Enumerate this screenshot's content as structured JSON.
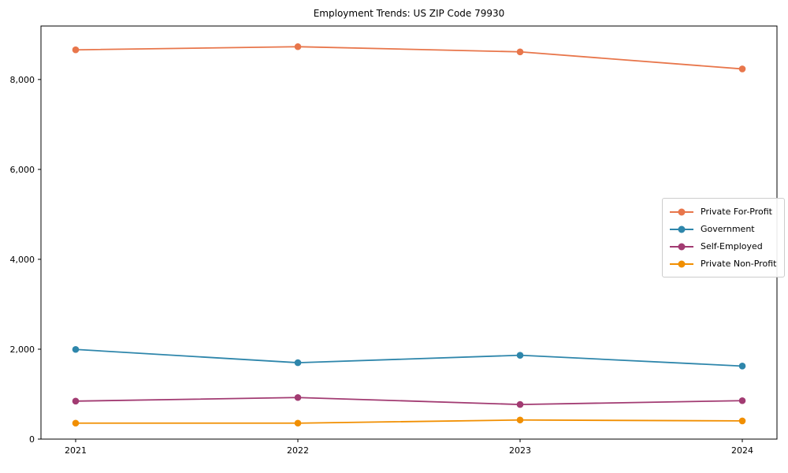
{
  "chart_data": {
    "type": "line",
    "title": "Employment Trends: US ZIP Code 79930",
    "xlabel": "",
    "ylabel": "",
    "x": [
      2021,
      2022,
      2023,
      2024
    ],
    "x_tick_labels": [
      "2021",
      "2022",
      "2023",
      "2024"
    ],
    "y_ticks": [
      0,
      2000,
      4000,
      6000,
      8000
    ],
    "y_tick_labels": [
      "0",
      "2,000",
      "4,000",
      "6,000",
      "8,000"
    ],
    "ylim": [
      0,
      9190
    ],
    "grid": false,
    "legend_position": "center right",
    "series": [
      {
        "name": "Private For-Profit",
        "color": "#E8764B",
        "values": [
          8660,
          8730,
          8615,
          8235
        ]
      },
      {
        "name": "Government",
        "color": "#2E86AB",
        "values": [
          1995,
          1700,
          1865,
          1625
        ]
      },
      {
        "name": "Self-Employed",
        "color": "#A23B72",
        "values": [
          845,
          925,
          770,
          855
        ]
      },
      {
        "name": "Private Non-Profit",
        "color": "#F18F01",
        "values": [
          355,
          355,
          425,
          405
        ]
      }
    ]
  }
}
